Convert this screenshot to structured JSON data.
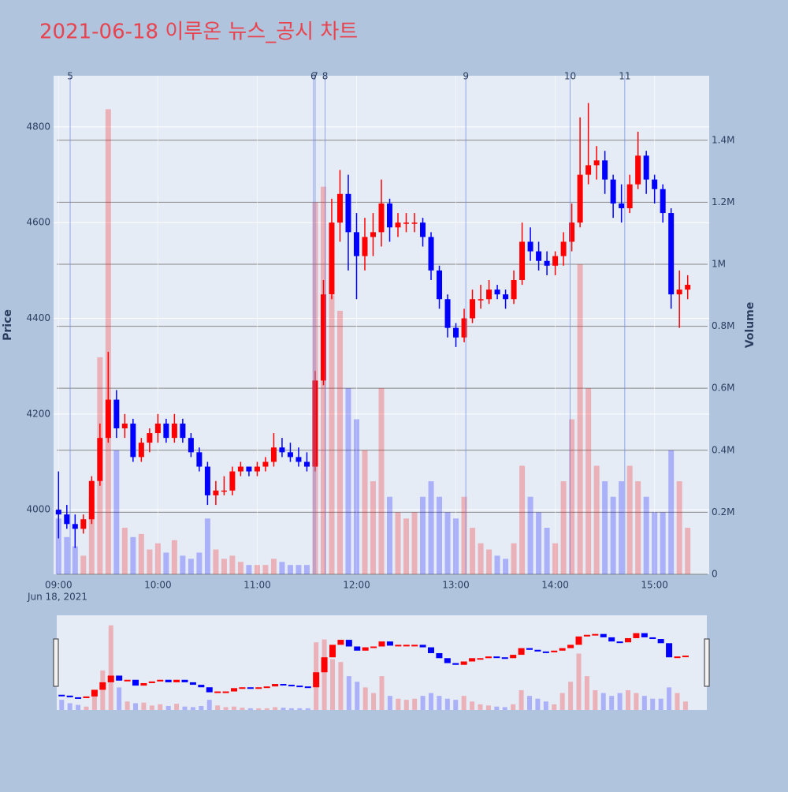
{
  "chart_data": {
    "type": "candlestick",
    "title": "2021-06-18 이루온 뉴스_공시 차트",
    "y_label": "Price",
    "y2_label": "Volume",
    "x_date_label": "Jun 18, 2021",
    "increasing_color": "#ff0000",
    "decreasing_color": "#0000ff",
    "x": [
      "09:00",
      "09:05",
      "09:10",
      "09:15",
      "09:20",
      "09:25",
      "09:30",
      "09:35",
      "09:40",
      "09:45",
      "09:50",
      "09:55",
      "10:00",
      "10:05",
      "10:10",
      "10:15",
      "10:20",
      "10:25",
      "10:30",
      "10:35",
      "10:40",
      "10:45",
      "10:50",
      "10:55",
      "11:00",
      "11:05",
      "11:10",
      "11:15",
      "11:20",
      "11:25",
      "11:30",
      "11:35",
      "11:40",
      "11:45",
      "11:50",
      "11:55",
      "12:00",
      "12:05",
      "12:10",
      "12:15",
      "12:20",
      "12:25",
      "12:30",
      "12:35",
      "12:40",
      "12:45",
      "12:50",
      "12:55",
      "13:00",
      "13:05",
      "13:10",
      "13:15",
      "13:20",
      "13:25",
      "13:30",
      "13:35",
      "13:40",
      "13:45",
      "13:50",
      "13:55",
      "14:00",
      "14:05",
      "14:10",
      "14:15",
      "14:20",
      "14:25",
      "14:30",
      "14:35",
      "14:40",
      "14:45",
      "14:50",
      "14:55",
      "15:00",
      "15:05",
      "15:10",
      "15:15",
      "15:20"
    ],
    "open": [
      4000,
      3990,
      3970,
      3960,
      3980,
      4060,
      4150,
      4230,
      4170,
      4180,
      4110,
      4140,
      4160,
      4180,
      4150,
      4180,
      4150,
      4120,
      4090,
      4030,
      4040,
      4040,
      4080,
      4090,
      4080,
      4090,
      4100,
      4130,
      4120,
      4110,
      4100,
      4090,
      4270,
      4450,
      4600,
      4660,
      4580,
      4530,
      4570,
      4580,
      4640,
      4590,
      4600,
      4600,
      4600,
      4570,
      4500,
      4440,
      4380,
      4360,
      4400,
      4440,
      4440,
      4460,
      4450,
      4440,
      4480,
      4560,
      4540,
      4520,
      4510,
      4530,
      4560,
      4600,
      4700,
      4720,
      4730,
      4690,
      4640,
      4630,
      4680,
      4740,
      4690,
      4670,
      4620,
      4450,
      4460
    ],
    "high": [
      4080,
      4010,
      3990,
      3990,
      4070,
      4180,
      4330,
      4250,
      4200,
      4190,
      4150,
      4170,
      4200,
      4190,
      4200,
      4190,
      4160,
      4130,
      4100,
      4060,
      4070,
      4090,
      4100,
      4090,
      4100,
      4110,
      4160,
      4150,
      4140,
      4130,
      4120,
      4290,
      4480,
      4650,
      4710,
      4700,
      4620,
      4610,
      4620,
      4690,
      4650,
      4620,
      4620,
      4620,
      4610,
      4580,
      4510,
      4450,
      4390,
      4420,
      4460,
      4470,
      4480,
      4470,
      4460,
      4500,
      4600,
      4590,
      4560,
      4540,
      4540,
      4580,
      4640,
      4820,
      4850,
      4760,
      4750,
      4700,
      4680,
      4700,
      4790,
      4750,
      4700,
      4680,
      4630,
      4500,
      4490
    ],
    "low": [
      3940,
      3960,
      3920,
      3950,
      3970,
      4050,
      4140,
      4150,
      4150,
      4100,
      4100,
      4120,
      4140,
      4140,
      4140,
      4140,
      4110,
      4080,
      4010,
      4010,
      4030,
      4030,
      4070,
      4070,
      4070,
      4080,
      4090,
      4110,
      4100,
      4090,
      4080,
      4080,
      4260,
      4440,
      4560,
      4500,
      4440,
      4500,
      4530,
      4550,
      4560,
      4570,
      4580,
      4580,
      4550,
      4480,
      4420,
      4360,
      4340,
      4350,
      4390,
      4420,
      4430,
      4440,
      4420,
      4430,
      4470,
      4520,
      4500,
      4490,
      4490,
      4510,
      4540,
      4590,
      4680,
      4690,
      4660,
      4610,
      4600,
      4620,
      4670,
      4660,
      4640,
      4600,
      4420,
      4380,
      4440
    ],
    "close": [
      3990,
      3970,
      3960,
      3980,
      4060,
      4150,
      4230,
      4170,
      4180,
      4110,
      4140,
      4160,
      4180,
      4150,
      4180,
      4150,
      4120,
      4090,
      4030,
      4040,
      4040,
      4080,
      4090,
      4080,
      4090,
      4100,
      4130,
      4120,
      4110,
      4100,
      4090,
      4270,
      4450,
      4600,
      4660,
      4580,
      4530,
      4570,
      4580,
      4640,
      4590,
      4600,
      4600,
      4600,
      4570,
      4500,
      4440,
      4380,
      4360,
      4400,
      4440,
      4440,
      4460,
      4450,
      4440,
      4480,
      4560,
      4540,
      4520,
      4510,
      4530,
      4560,
      4600,
      4700,
      4720,
      4730,
      4690,
      4640,
      4630,
      4680,
      4740,
      4690,
      4670,
      4620,
      4450,
      4460,
      4470
    ],
    "volume": [
      180000,
      120000,
      90000,
      60000,
      250000,
      700000,
      1500000,
      400000,
      150000,
      120000,
      130000,
      80000,
      100000,
      70000,
      110000,
      60000,
      50000,
      70000,
      180000,
      80000,
      50000,
      60000,
      40000,
      30000,
      30000,
      30000,
      50000,
      40000,
      30000,
      30000,
      30000,
      1200000,
      1250000,
      900000,
      850000,
      600000,
      500000,
      400000,
      300000,
      600000,
      250000,
      200000,
      180000,
      200000,
      250000,
      300000,
      250000,
      200000,
      180000,
      250000,
      150000,
      100000,
      80000,
      60000,
      50000,
      100000,
      350000,
      250000,
      200000,
      150000,
      100000,
      300000,
      500000,
      1000000,
      600000,
      350000,
      300000,
      250000,
      300000,
      350000,
      300000,
      250000,
      200000,
      200000,
      400000,
      300000,
      150000
    ],
    "news": [
      {
        "label": "5",
        "x": "09:07"
      },
      {
        "label": "6",
        "x": "11:34"
      },
      {
        "label": "7",
        "x": "11:35"
      },
      {
        "label": "8",
        "x": "11:41"
      },
      {
        "label": "9",
        "x": "13:06"
      },
      {
        "label": "10",
        "x": "14:09"
      },
      {
        "label": "11",
        "x": "14:42"
      }
    ],
    "xlim": [
      "08:57",
      "15:33"
    ],
    "xticks": [
      "09:00",
      "10:00",
      "11:00",
      "12:00",
      "13:00",
      "14:00",
      "15:00"
    ],
    "ylim": [
      3865,
      4907
    ],
    "yticks": [
      4000,
      4200,
      4400,
      4600,
      4800
    ],
    "y2lim": [
      0,
      1608000
    ],
    "y2ticks": [
      0,
      {
        "value": 200000,
        "label": "0.2M"
      },
      {
        "value": 400000,
        "label": "0.4M"
      },
      {
        "value": 600000,
        "label": "0.6M"
      },
      {
        "value": 800000,
        "label": "0.8M"
      },
      {
        "value": 1000000,
        "label": "1M"
      },
      {
        "value": 1200000,
        "label": "1.2M"
      },
      {
        "value": 1400000,
        "label": "1.4M"
      }
    ],
    "grid": true
  }
}
